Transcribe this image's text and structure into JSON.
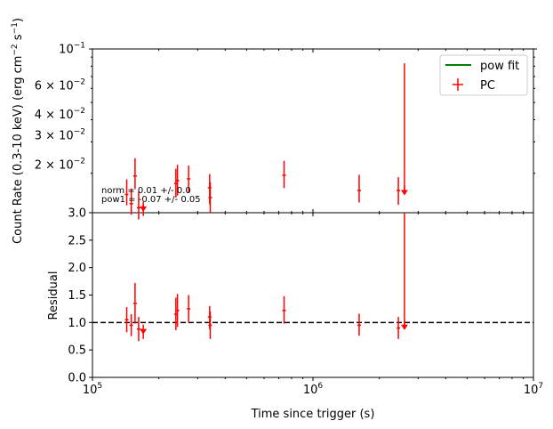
{
  "chart_data": [
    {
      "panel": "top",
      "type": "scatter",
      "xscale": "log",
      "yscale": "log",
      "xlim": [
        100000,
        10000000
      ],
      "ylim": [
        0.012,
        0.1
      ],
      "ylabel": "Count Rate (0.3-10 keV) (erg cm$^{-2}$ s$^{-1}$)",
      "ylabel_parts": {
        "main": "Count Rate (0.3-10 keV) (erg cm",
        "exp1": "−2",
        "mid": " s",
        "exp2": "−1",
        "end": ")"
      },
      "ytick_labels": {
        "t1": {
          "base": "2 × 10",
          "exp": "−2",
          "value": 0.02
        },
        "t2": {
          "base": "3 × 10",
          "exp": "−2",
          "value": 0.03
        },
        "t3": {
          "base": "4 × 10",
          "exp": "−2",
          "value": 0.04
        },
        "t4": {
          "base": "6 × 10",
          "exp": "−2",
          "value": 0.06
        },
        "t5": {
          "base": "10",
          "exp": "−1",
          "value": 0.1
        }
      },
      "legend": {
        "placement": "top-right",
        "fit_label": "pow fit",
        "data_label": "PC",
        "fit_color": "#008000"
      },
      "annotations": {
        "norm": "norm = 0.01 +/- 0.0",
        "pow": "pow1 = -0.07 +/- 0.05"
      },
      "series": [
        {
          "name": "PC",
          "color": "#ff0000",
          "points": [
            {
              "x": 143000,
              "y": 0.0152,
              "ylo": 0.0132,
              "yhi": 0.0185
            },
            {
              "x": 150000,
              "y": 0.0135,
              "ylo": 0.0117,
              "yhi": 0.0164
            },
            {
              "x": 156000,
              "y": 0.0193,
              "ylo": 0.0163,
              "yhi": 0.0243
            },
            {
              "x": 162000,
              "y": 0.0128,
              "ylo": 0.011,
              "yhi": 0.0158
            },
            {
              "x": 170000,
              "y": 0.0123,
              "ylo": 0.0115,
              "yhi": 0.0135,
              "upper_limit": true
            },
            {
              "x": 239000,
              "y": 0.0175,
              "ylo": 0.0146,
              "yhi": 0.0212
            },
            {
              "x": 243000,
              "y": 0.0182,
              "ylo": 0.015,
              "yhi": 0.0223
            },
            {
              "x": 273000,
              "y": 0.0186,
              "ylo": 0.0155,
              "yhi": 0.0221
            },
            {
              "x": 340000,
              "y": 0.0166,
              "ylo": 0.0134,
              "yhi": 0.0198
            },
            {
              "x": 342000,
              "y": 0.0146,
              "ylo": 0.012,
              "yhi": 0.0178
            },
            {
              "x": 740000,
              "y": 0.0195,
              "ylo": 0.0165,
              "yhi": 0.0235
            },
            {
              "x": 1620000,
              "y": 0.016,
              "ylo": 0.0137,
              "yhi": 0.0196
            },
            {
              "x": 2440000,
              "y": 0.016,
              "ylo": 0.0133,
              "yhi": 0.019
            },
            {
              "x": 2600000,
              "y": 0.0152,
              "ylo": 0.0152,
              "yhi": 0.083,
              "upper_limit": true
            }
          ]
        },
        {
          "name": "pow fit",
          "color": "#008000",
          "points": []
        }
      ]
    },
    {
      "panel": "bottom",
      "type": "scatter",
      "xscale": "log",
      "xlim": [
        100000,
        10000000
      ],
      "ylim": [
        0.0,
        3.0
      ],
      "xlabel": "Time since trigger (s)",
      "ylabel": "Residual",
      "xtick_labels": {
        "t5": {
          "base": "10",
          "exp": "5",
          "value": 100000
        },
        "t6": {
          "base": "10",
          "exp": "6",
          "value": 1000000
        },
        "t7": {
          "base": "10",
          "exp": "7",
          "value": 10000000
        }
      },
      "yticks": [
        "0.0",
        "0.5",
        "1.0",
        "1.5",
        "2.0",
        "2.5",
        "3.0"
      ],
      "reference_line": 1.0,
      "series": [
        {
          "name": "residual",
          "color": "#ff0000",
          "points": [
            {
              "x": 143000,
              "y": 1.05,
              "ylo": 0.82,
              "yhi": 1.28
            },
            {
              "x": 150000,
              "y": 0.95,
              "ylo": 0.75,
              "yhi": 1.15
            },
            {
              "x": 156000,
              "y": 1.35,
              "ylo": 0.98,
              "yhi": 1.72
            },
            {
              "x": 162000,
              "y": 0.88,
              "ylo": 0.66,
              "yhi": 1.1
            },
            {
              "x": 170000,
              "y": 0.8,
              "ylo": 0.7,
              "yhi": 0.85,
              "upper_limit": true
            },
            {
              "x": 239000,
              "y": 1.15,
              "ylo": 0.86,
              "yhi": 1.45
            },
            {
              "x": 243000,
              "y": 1.22,
              "ylo": 0.92,
              "yhi": 1.52
            },
            {
              "x": 273000,
              "y": 1.25,
              "ylo": 1.0,
              "yhi": 1.5
            },
            {
              "x": 340000,
              "y": 1.1,
              "ylo": 0.88,
              "yhi": 1.3
            },
            {
              "x": 342000,
              "y": 0.95,
              "ylo": 0.7,
              "yhi": 1.2
            },
            {
              "x": 740000,
              "y": 1.22,
              "ylo": 0.98,
              "yhi": 1.48
            },
            {
              "x": 1620000,
              "y": 0.95,
              "ylo": 0.76,
              "yhi": 1.16
            },
            {
              "x": 2440000,
              "y": 0.9,
              "ylo": 0.7,
              "yhi": 1.1
            },
            {
              "x": 2600000,
              "y": 0.88,
              "ylo": 0.88,
              "yhi": 3.0,
              "upper_limit": true
            }
          ]
        }
      ]
    }
  ]
}
